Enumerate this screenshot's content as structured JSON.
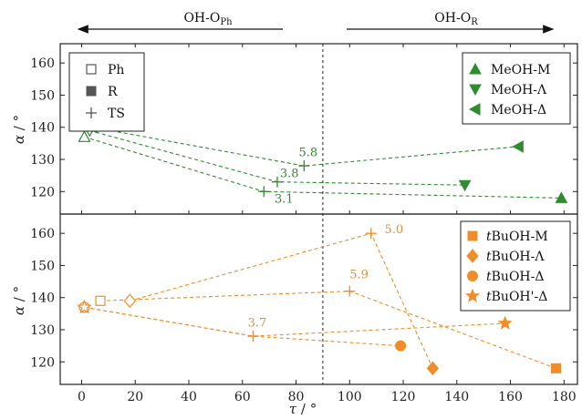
{
  "chart_data": {
    "type": "scatter",
    "regions": {
      "left": {
        "main": "OH-O",
        "sub": "Ph"
      },
      "right": {
        "main": "OH-O",
        "sub": "R"
      }
    },
    "xlabel": {
      "main": "τ",
      "unit": " / °"
    },
    "ylabel": {
      "main": "α",
      "unit": " / °"
    },
    "xlim": [
      -8,
      185
    ],
    "xticks": [
      0,
      20,
      40,
      60,
      80,
      100,
      120,
      140,
      160,
      180
    ],
    "divider_x": 90,
    "colors": {
      "green": "#2e8b2e",
      "orange": "#f28c28"
    },
    "panels": [
      {
        "id": "top",
        "ylim": [
          113,
          166
        ],
        "yticks": [
          120,
          130,
          140,
          150,
          160
        ],
        "legend_types": [
          {
            "label": "Ph",
            "marker": "square-open"
          },
          {
            "label": "R",
            "marker": "square-filled"
          },
          {
            "label": "TS",
            "marker": "plus"
          }
        ],
        "legend_series": [
          {
            "label": "MeOH-M",
            "marker": "tri-up"
          },
          {
            "label": "MeOH-Λ",
            "marker": "tri-down"
          },
          {
            "label": "MeOH-Δ",
            "marker": "tri-left"
          }
        ],
        "series": [
          {
            "name": "MeOH-M",
            "color": "green",
            "points": [
              {
                "x": 1,
                "y": 137,
                "m": "tri-up-open"
              },
              {
                "x": 68,
                "y": 120,
                "m": "plus"
              },
              {
                "x": 179,
                "y": 118,
                "m": "tri-up"
              }
            ]
          },
          {
            "name": "MeOH-Λ",
            "color": "green",
            "points": [
              {
                "x": 3,
                "y": 139,
                "m": "tri-down-open"
              },
              {
                "x": 73,
                "y": 123,
                "m": "plus"
              },
              {
                "x": 143,
                "y": 122,
                "m": "tri-down"
              }
            ]
          },
          {
            "name": "MeOH-Δ",
            "color": "green",
            "points": [
              {
                "x": 4,
                "y": 140,
                "m": "tri-left-open"
              },
              {
                "x": 83,
                "y": 128,
                "m": "plus"
              },
              {
                "x": 163,
                "y": 134,
                "m": "tri-left"
              }
            ]
          }
        ],
        "annotations": [
          {
            "text": "5.8",
            "x": 81,
            "y": 131,
            "color": "green"
          },
          {
            "text": "3.8",
            "x": 74,
            "y": 124.5,
            "color": "green"
          },
          {
            "text": "3.1",
            "x": 72,
            "y": 116.5,
            "color": "green"
          }
        ]
      },
      {
        "id": "bottom",
        "ylim": [
          113,
          166
        ],
        "yticks": [
          120,
          130,
          140,
          150,
          160
        ],
        "legend_series": [
          {
            "label": "BuOH-M",
            "prefix": "t",
            "marker": "square"
          },
          {
            "label": "BuOH-Λ",
            "prefix": "t",
            "marker": "diamond"
          },
          {
            "label": "BuOH-Δ",
            "prefix": "t",
            "marker": "circle"
          },
          {
            "label": "BuOH'-Δ",
            "prefix": "t",
            "marker": "star"
          }
        ],
        "series": [
          {
            "name": "tBuOH-M",
            "color": "orange",
            "points": [
              {
                "x": 7,
                "y": 139,
                "m": "square-open"
              },
              {
                "x": 100,
                "y": 142,
                "m": "plus"
              },
              {
                "x": 177,
                "y": 118,
                "m": "square"
              }
            ]
          },
          {
            "name": "tBuOH-Λ",
            "color": "orange",
            "points": [
              {
                "x": 18,
                "y": 139,
                "m": "diamond-open"
              },
              {
                "x": 108,
                "y": 160,
                "m": "plus"
              },
              {
                "x": 131,
                "y": 118,
                "m": "diamond"
              }
            ]
          },
          {
            "name": "tBuOH-Δ",
            "color": "orange",
            "points": [
              {
                "x": 1,
                "y": 137,
                "m": "circle-open"
              },
              {
                "x": 64,
                "y": 128,
                "m": "plus"
              },
              {
                "x": 119,
                "y": 125,
                "m": "circle"
              }
            ]
          },
          {
            "name": "tBuOH'-Δ",
            "color": "orange",
            "points": [
              {
                "x": 1,
                "y": 137,
                "m": "star-open"
              },
              {
                "x": 64,
                "y": 128,
                "m": "plus"
              },
              {
                "x": 158,
                "y": 132,
                "m": "star"
              }
            ]
          }
        ],
        "annotations": [
          {
            "text": "5.0",
            "x": 113,
            "y": 160,
            "color": "orange"
          },
          {
            "text": "5.9",
            "x": 100,
            "y": 146,
            "color": "orange"
          },
          {
            "text": "3.7",
            "x": 62,
            "y": 131,
            "color": "orange"
          }
        ]
      }
    ]
  }
}
